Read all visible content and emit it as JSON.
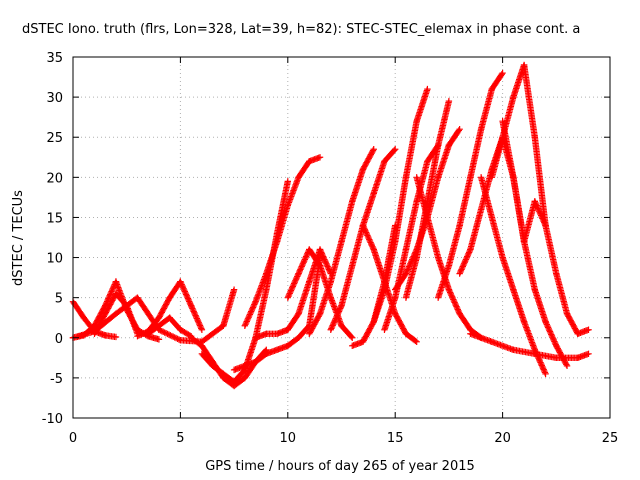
{
  "chart_data": {
    "type": "scatter",
    "title": "dSTEC Iono. truth (flrs, Lon=328, Lat=39, h=82): STEC-STEC_elemax in phase cont. a",
    "xlabel": "GPS time / hours of day 265 of year 2015",
    "ylabel": "dSTEC  / TECUs",
    "xlim": [
      0,
      25
    ],
    "ylim": [
      -10,
      35
    ],
    "xticks": [
      0,
      5,
      10,
      15,
      20,
      25
    ],
    "yticks": [
      -10,
      -5,
      0,
      5,
      10,
      15,
      20,
      25,
      30,
      35
    ],
    "grid": true,
    "marker": "+",
    "color": "#ff0000",
    "series": [
      {
        "x": [
          0.0,
          0.5,
          1.0,
          1.5,
          2.0
        ],
        "y": [
          0.0,
          0.3,
          1.5,
          4.0,
          7.0
        ]
      },
      {
        "x": [
          2.0,
          2.5,
          3.0,
          3.5,
          4.0
        ],
        "y": [
          7.0,
          3.5,
          1.0,
          0.2,
          -0.2
        ]
      },
      {
        "x": [
          0.0,
          0.5,
          1.0,
          1.5,
          2.0
        ],
        "y": [
          4.5,
          2.5,
          0.8,
          0.3,
          0.1
        ]
      },
      {
        "x": [
          0.0,
          1.0,
          2.0,
          3.0,
          4.0,
          5.0,
          6.0,
          7.0,
          7.5
        ],
        "y": [
          0.0,
          0.8,
          3.0,
          5.0,
          1.0,
          -0.3,
          -0.5,
          1.5,
          6.0
        ]
      },
      {
        "x": [
          1.0,
          1.5,
          2.0,
          2.5,
          3.0
        ],
        "y": [
          0.5,
          3.0,
          5.5,
          4.0,
          0.5
        ]
      },
      {
        "x": [
          3.0,
          3.5,
          4.0,
          4.5,
          5.0,
          5.5,
          6.0
        ],
        "y": [
          0.2,
          0.8,
          2.5,
          5.0,
          7.0,
          4.0,
          1.0
        ]
      },
      {
        "x": [
          3.5,
          4.0,
          4.5,
          5.0,
          5.5
        ],
        "y": [
          0.5,
          1.5,
          2.5,
          1.0,
          0.2
        ]
      },
      {
        "x": [
          5.5,
          6.0,
          6.5,
          7.0,
          7.5,
          8.0,
          8.5,
          9.0
        ],
        "y": [
          0.0,
          -1.0,
          -3.0,
          -5.0,
          -6.0,
          -5.0,
          -3.0,
          -1.5
        ]
      },
      {
        "x": [
          6.0,
          6.5,
          7.0,
          7.5,
          8.0,
          8.5,
          9.0,
          9.5,
          10.0
        ],
        "y": [
          -2.0,
          -3.5,
          -4.5,
          -5.5,
          -4.0,
          0.0,
          6.0,
          13.0,
          19.5
        ]
      },
      {
        "x": [
          7.5,
          8.0,
          8.5,
          9.0,
          9.5,
          10.0,
          10.5,
          11.0,
          11.5
        ],
        "y": [
          -4.0,
          -3.5,
          -3.0,
          -2.0,
          -1.5,
          -1.0,
          0.0,
          1.5,
          10.0
        ]
      },
      {
        "x": [
          8.0,
          8.5,
          9.0,
          9.5,
          10.0,
          10.5,
          11.0,
          11.5
        ],
        "y": [
          1.5,
          4.5,
          8.0,
          12.0,
          16.5,
          20.0,
          22.0,
          22.5
        ]
      },
      {
        "x": [
          8.5,
          9.0,
          9.5,
          10.0,
          10.5,
          11.0,
          11.5,
          12.0
        ],
        "y": [
          0.0,
          0.5,
          0.5,
          1.0,
          3.0,
          7.0,
          11.0,
          8.0
        ]
      },
      {
        "x": [
          10.0,
          10.5,
          11.0,
          11.5,
          12.0,
          12.5,
          13.0
        ],
        "y": [
          5.0,
          8.0,
          11.0,
          9.0,
          5.0,
          1.5,
          0.0
        ]
      },
      {
        "x": [
          11.0,
          11.5,
          12.0,
          12.5,
          13.0,
          13.5,
          14.0
        ],
        "y": [
          0.5,
          3.0,
          7.0,
          12.0,
          17.0,
          21.0,
          23.5
        ]
      },
      {
        "x": [
          12.0,
          12.5,
          13.0,
          13.5,
          14.0,
          14.5,
          15.0
        ],
        "y": [
          1.0,
          4.0,
          9.0,
          14.0,
          18.0,
          22.0,
          23.5
        ]
      },
      {
        "x": [
          13.0,
          13.5,
          14.0,
          14.5,
          15.0
        ],
        "y": [
          -1.0,
          -0.5,
          2.0,
          7.0,
          14.0
        ]
      },
      {
        "x": [
          13.5,
          14.0,
          14.5,
          15.0,
          15.5,
          16.0
        ],
        "y": [
          14.0,
          11.0,
          7.0,
          3.0,
          0.5,
          -0.5
        ]
      },
      {
        "x": [
          14.0,
          14.5,
          15.0,
          15.5,
          16.0,
          16.5
        ],
        "y": [
          2.0,
          6.0,
          12.0,
          20.0,
          27.0,
          31.0
        ]
      },
      {
        "x": [
          14.5,
          15.0,
          15.5,
          16.0,
          16.5,
          17.0
        ],
        "y": [
          1.0,
          5.0,
          11.0,
          17.0,
          22.0,
          24.0
        ]
      },
      {
        "x": [
          15.5,
          16.0,
          16.5,
          17.0,
          17.5
        ],
        "y": [
          5.0,
          10.0,
          17.0,
          24.0,
          29.5
        ]
      },
      {
        "x": [
          15.0,
          15.5,
          16.0,
          16.5,
          17.0,
          17.5,
          18.0
        ],
        "y": [
          6.0,
          8.0,
          11.0,
          15.0,
          20.0,
          24.0,
          26.0
        ]
      },
      {
        "x": [
          16.0,
          16.5,
          17.0,
          17.5,
          18.0,
          18.5,
          19.0
        ],
        "y": [
          20.0,
          15.0,
          10.0,
          6.0,
          3.0,
          1.0,
          0.0
        ]
      },
      {
        "x": [
          17.0,
          17.5,
          18.0,
          18.5,
          19.0,
          19.5,
          20.0
        ],
        "y": [
          5.0,
          9.0,
          14.0,
          20.0,
          26.0,
          31.0,
          33.0
        ]
      },
      {
        "x": [
          18.0,
          18.5,
          19.0,
          19.5,
          20.0,
          20.5,
          21.0
        ],
        "y": [
          8.0,
          11.0,
          16.0,
          21.0,
          25.0,
          20.0,
          12.0
        ]
      },
      {
        "x": [
          19.5,
          20.0,
          20.5,
          21.0,
          21.5,
          22.0
        ],
        "y": [
          20.0,
          25.0,
          30.0,
          34.0,
          25.0,
          14.0
        ]
      },
      {
        "x": [
          20.0,
          20.5,
          21.0,
          21.5,
          22.0,
          22.5,
          23.0
        ],
        "y": [
          27.0,
          20.0,
          12.0,
          6.0,
          2.0,
          -1.0,
          -3.5
        ]
      },
      {
        "x": [
          19.0,
          19.5,
          20.0,
          20.5,
          21.0,
          21.5,
          22.0
        ],
        "y": [
          20.0,
          15.0,
          10.0,
          6.0,
          2.0,
          -1.5,
          -4.5
        ]
      },
      {
        "x": [
          21.0,
          21.5,
          22.0,
          22.5,
          23.0,
          23.5,
          24.0
        ],
        "y": [
          12.0,
          17.0,
          14.0,
          8.0,
          3.0,
          0.5,
          1.0
        ]
      },
      {
        "x": [
          18.5,
          19.5,
          20.5,
          21.5,
          22.5,
          23.5,
          24.0
        ],
        "y": [
          0.5,
          -0.5,
          -1.5,
          -2.0,
          -2.5,
          -2.5,
          -2.0
        ]
      }
    ]
  }
}
